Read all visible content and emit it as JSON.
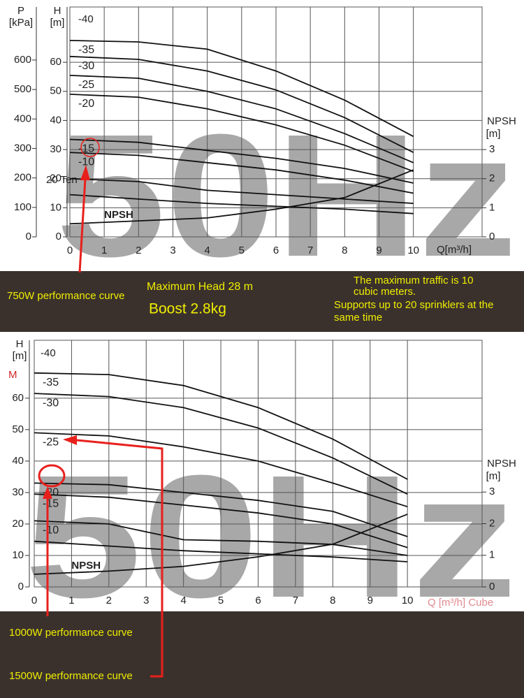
{
  "chart_data": [
    {
      "type": "line",
      "watermark": "50Hz",
      "x_label": "Q[m³/h]",
      "y_label": [
        "H",
        "[m]"
      ],
      "p_label": [
        "P",
        "[kPa]"
      ],
      "y2_label": [
        "NPSH",
        "[m]"
      ],
      "annotations": [
        "-40",
        "20 Ten"
      ],
      "x": [
        0,
        2,
        4,
        6,
        8,
        10
      ],
      "xlim": [
        0,
        12
      ],
      "xticks": [
        0,
        1,
        2,
        3,
        4,
        5,
        6,
        7,
        8,
        9,
        10
      ],
      "ylim": [
        0,
        79
      ],
      "yticks": [
        0,
        10,
        20,
        30,
        40,
        50,
        60
      ],
      "plim": [
        0,
        780
      ],
      "pticks": [
        0,
        100,
        200,
        300,
        400,
        500,
        600
      ],
      "y2lim": [
        0,
        7.9
      ],
      "y2ticks": [
        0,
        1,
        2,
        3
      ],
      "grid": true,
      "series": [
        {
          "name": "-35",
          "color": "#111",
          "values": [
            67.5,
            67,
            64.5,
            57,
            47,
            34.5
          ]
        },
        {
          "name": "-30",
          "color": "#111",
          "values": [
            62,
            61,
            57,
            50.5,
            41,
            29
          ]
        },
        {
          "name": "-25",
          "color": "#111",
          "values": [
            55.5,
            54.5,
            50,
            44,
            35.5,
            25.5
          ]
        },
        {
          "name": "-20",
          "color": "#111",
          "values": [
            49,
            48,
            44,
            38.5,
            31.5,
            22.5
          ]
        },
        {
          "name": "-15",
          "color": "#111",
          "values": [
            33.5,
            32.5,
            29.7,
            27,
            23.5,
            18.5
          ]
        },
        {
          "name": "-10",
          "color": "#111",
          "values": [
            29,
            28,
            25.5,
            23,
            19.5,
            15
          ]
        },
        {
          "color": "#111",
          "values": [
            20,
            19,
            16,
            14.5,
            13,
            11.5
          ]
        },
        {
          "color": "#111",
          "values": [
            14.5,
            13,
            11.5,
            10.5,
            9.5,
            8
          ]
        },
        {
          "name": "NPSH",
          "color": "#111",
          "axis": "y2",
          "values": [
            0.45,
            0.55,
            0.65,
            0.95,
            1.35,
            2.3
          ]
        }
      ]
    },
    {
      "type": "line",
      "watermark": "50Hz",
      "x_label": "Q [m³/h] Cube",
      "y_label": [
        "H",
        "[m]"
      ],
      "y2_label": [
        "NPSH",
        "[m]"
      ],
      "annotations": [
        "-40",
        "M"
      ],
      "x": [
        0,
        2,
        4,
        6,
        8,
        10
      ],
      "xlim": [
        0,
        12
      ],
      "xticks": [
        0,
        1,
        2,
        3,
        4,
        5,
        6,
        7,
        8,
        9,
        10
      ],
      "ylim": [
        0,
        78.4
      ],
      "yticks": [
        0,
        10,
        20,
        30,
        40,
        50,
        60
      ],
      "y2lim": [
        0,
        7.8
      ],
      "y2ticks": [
        0,
        1,
        2,
        3
      ],
      "grid": true,
      "series": [
        {
          "name": "-35",
          "color": "#111",
          "values": [
            68,
            67.5,
            64,
            57,
            47,
            34.2
          ]
        },
        {
          "name": "-30",
          "color": "#111",
          "values": [
            61.5,
            60.5,
            57,
            50.5,
            41,
            29.5
          ]
        },
        {
          "name": "-25",
          "color": "#111",
          "values": [
            49,
            48,
            44.5,
            40,
            33,
            25.5
          ]
        },
        {
          "name": "-20",
          "color": "#111",
          "values": [
            33,
            32.5,
            30,
            27.5,
            24,
            16
          ]
        },
        {
          "name": "-15",
          "color": "#111",
          "values": [
            29.5,
            28.5,
            26,
            23.5,
            20,
            12.5
          ]
        },
        {
          "name": "-10",
          "color": "#111",
          "values": [
            21,
            20,
            15,
            14.5,
            13.5,
            10
          ]
        },
        {
          "color": "#111",
          "values": [
            14.5,
            13,
            11.5,
            10.5,
            9.5,
            8
          ]
        },
        {
          "name": "NPSH",
          "color": "#111",
          "axis": "y2",
          "values": [
            0.4,
            0.5,
            0.65,
            0.95,
            1.35,
            2.3
          ]
        }
      ]
    }
  ],
  "banner": {
    "curve_750": "750W performance curve",
    "max_head": "Maximum Head 28 m",
    "boost": "Boost 2.8kg",
    "max_traffic": [
      "The maximum traffic is 10",
      "cubic meters."
    ],
    "sprinklers": [
      "Supports up to 20 sprinklers at the",
      "same time"
    ]
  },
  "callouts": [
    "1000W performance curve",
    "1500W performance curve"
  ]
}
